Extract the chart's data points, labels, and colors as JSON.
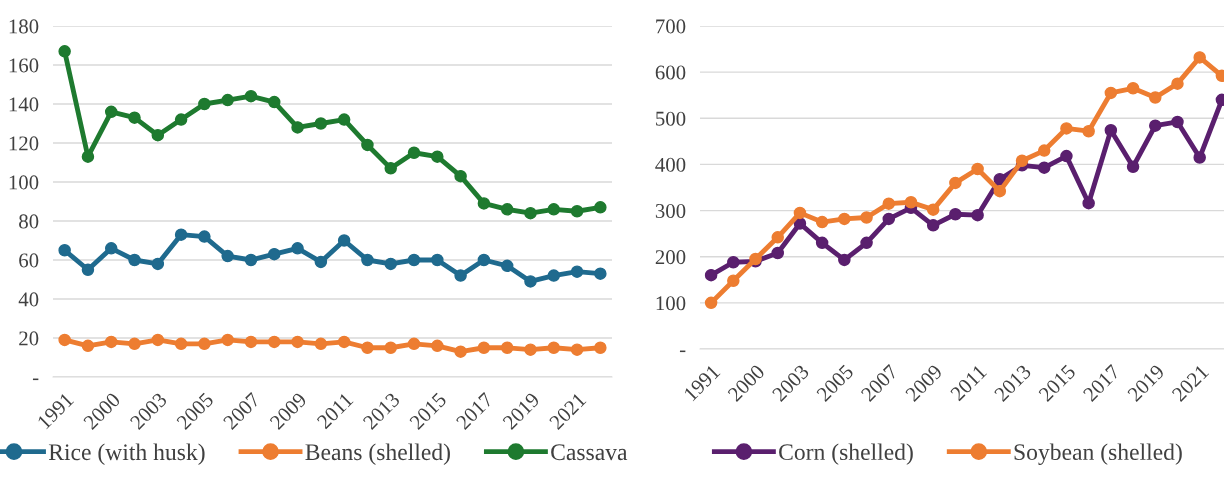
{
  "chart_data": [
    {
      "type": "line",
      "categories": [
        "1991",
        null,
        "2000",
        null,
        "2003",
        null,
        "2005",
        null,
        "2007",
        null,
        "2009",
        null,
        "2011",
        null,
        "2013",
        null,
        "2015",
        null,
        "2017",
        null,
        "2019",
        null,
        "2021",
        null
      ],
      "series": [
        {
          "name": "Rice (with husk)",
          "color": "#1f6a8e",
          "values": [
            65,
            55,
            66,
            60,
            58,
            73,
            72,
            62,
            60,
            63,
            66,
            59,
            70,
            60,
            58,
            60,
            60,
            52,
            60,
            57,
            49,
            52,
            54,
            53
          ]
        },
        {
          "name": "Beans (shelled)",
          "color": "#ed7d31",
          "values": [
            19,
            16,
            18,
            17,
            19,
            17,
            17,
            19,
            18,
            18,
            18,
            17,
            18,
            15,
            15,
            17,
            16,
            13,
            15,
            15,
            14,
            15,
            14,
            15
          ]
        },
        {
          "name": "Cassava",
          "color": "#1e7a2f",
          "values": [
            167,
            113,
            136,
            133,
            124,
            132,
            140,
            142,
            144,
            141,
            128,
            130,
            132,
            119,
            107,
            115,
            113,
            103,
            89,
            86,
            84,
            86,
            85,
            87
          ]
        }
      ],
      "ylim": [
        0,
        180
      ],
      "yticks": [
        {
          "value": 0,
          "label": "-"
        },
        20,
        40,
        60,
        80,
        100,
        120,
        140,
        160,
        180
      ],
      "grid": "y",
      "legend": "bottom",
      "marker": "circle",
      "line_style": "solid"
    },
    {
      "type": "line",
      "categories": [
        "1991",
        null,
        "2000",
        null,
        "2003",
        null,
        "2005",
        null,
        "2007",
        null,
        "2009",
        null,
        "2011",
        null,
        "2013",
        null,
        "2015",
        null,
        "2017",
        null,
        "2019",
        null,
        "2021",
        null
      ],
      "series": [
        {
          "name": "Corn (shelled)",
          "color": "#5a1f6e",
          "values": [
            160,
            188,
            190,
            208,
            272,
            230,
            193,
            230,
            282,
            306,
            268,
            292,
            290,
            368,
            398,
            393,
            418,
            316,
            474,
            395,
            484,
            492,
            415,
            540
          ]
        },
        {
          "name": "Soybean (shelled)",
          "color": "#ed7d31",
          "values": [
            100,
            148,
            195,
            242,
            295,
            275,
            282,
            285,
            315,
            318,
            302,
            360,
            390,
            342,
            408,
            430,
            478,
            472,
            555,
            565,
            545,
            575,
            632,
            592
          ]
        }
      ],
      "ylim": [
        0,
        700
      ],
      "yticks": [
        {
          "value": 0,
          "label": "-"
        },
        100,
        200,
        300,
        400,
        500,
        600,
        700
      ],
      "grid": "y",
      "legend": "bottom",
      "marker": "circle",
      "line_style": "solid"
    }
  ]
}
